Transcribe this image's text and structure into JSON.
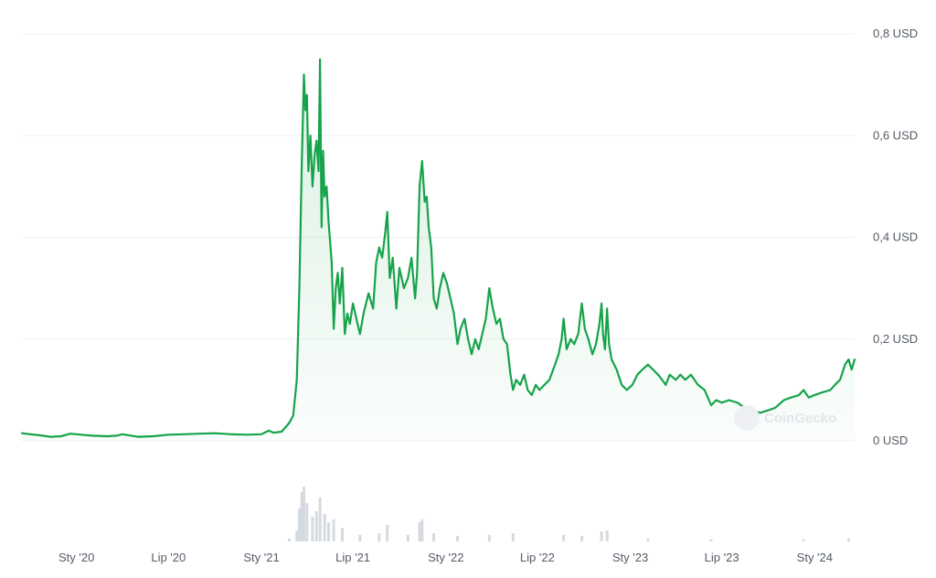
{
  "chart_data": {
    "type": "area",
    "title": "",
    "xlabel": "",
    "ylabel": "",
    "currency_unit": "USD",
    "ylim": [
      0,
      0.8
    ],
    "yticks": [
      {
        "value": 0,
        "label": "0 USD"
      },
      {
        "value": 0.2,
        "label": "0,2 USD"
      },
      {
        "value": 0.4,
        "label": "0,4 USD"
      },
      {
        "value": 0.6,
        "label": "0,6 USD"
      },
      {
        "value": 0.8,
        "label": "0,8 USD"
      }
    ],
    "xlim": [
      "2019-09-15",
      "2024-03-20"
    ],
    "xticks": [
      {
        "date": "2020-01-01",
        "label": "Sty '20"
      },
      {
        "date": "2020-07-01",
        "label": "Lip '20"
      },
      {
        "date": "2021-01-01",
        "label": "Sty '21"
      },
      {
        "date": "2021-07-01",
        "label": "Lip '21"
      },
      {
        "date": "2022-01-01",
        "label": "Sty '22"
      },
      {
        "date": "2022-07-01",
        "label": "Lip '22"
      },
      {
        "date": "2023-01-01",
        "label": "Sty '23"
      },
      {
        "date": "2023-07-01",
        "label": "Lip '23"
      },
      {
        "date": "2024-01-01",
        "label": "Sty '24"
      }
    ],
    "grid": true,
    "colors": {
      "line": "#16a34a",
      "fill": "#16a34a",
      "volume": "#d5dae1",
      "grid": "#eef0f3",
      "tick_text": "#545b66"
    },
    "watermark": "CoinGecko",
    "series": [
      {
        "name": "",
        "points": [
          [
            "2019-09-15",
            0.015
          ],
          [
            "2019-10-01",
            0.013
          ],
          [
            "2019-10-20",
            0.011
          ],
          [
            "2019-11-10",
            0.008
          ],
          [
            "2019-12-01",
            0.009
          ],
          [
            "2019-12-20",
            0.014
          ],
          [
            "2020-01-10",
            0.012
          ],
          [
            "2020-02-01",
            0.01
          ],
          [
            "2020-03-01",
            0.009
          ],
          [
            "2020-03-20",
            0.01
          ],
          [
            "2020-04-01",
            0.013
          ],
          [
            "2020-05-01",
            0.008
          ],
          [
            "2020-06-01",
            0.009
          ],
          [
            "2020-07-01",
            0.012
          ],
          [
            "2020-08-01",
            0.013
          ],
          [
            "2020-09-01",
            0.014
          ],
          [
            "2020-10-01",
            0.015
          ],
          [
            "2020-11-01",
            0.013
          ],
          [
            "2020-12-01",
            0.012
          ],
          [
            "2021-01-01",
            0.013
          ],
          [
            "2021-01-15",
            0.02
          ],
          [
            "2021-01-25",
            0.016
          ],
          [
            "2021-02-10",
            0.018
          ],
          [
            "2021-02-25",
            0.035
          ],
          [
            "2021-03-05",
            0.05
          ],
          [
            "2021-03-12",
            0.12
          ],
          [
            "2021-03-17",
            0.3
          ],
          [
            "2021-03-22",
            0.55
          ],
          [
            "2021-03-26",
            0.72
          ],
          [
            "2021-03-29",
            0.65
          ],
          [
            "2021-04-01",
            0.68
          ],
          [
            "2021-04-04",
            0.53
          ],
          [
            "2021-04-08",
            0.6
          ],
          [
            "2021-04-12",
            0.5
          ],
          [
            "2021-04-16",
            0.56
          ],
          [
            "2021-04-20",
            0.59
          ],
          [
            "2021-04-24",
            0.53
          ],
          [
            "2021-04-27",
            0.75
          ],
          [
            "2021-04-30",
            0.42
          ],
          [
            "2021-05-03",
            0.57
          ],
          [
            "2021-05-06",
            0.48
          ],
          [
            "2021-05-10",
            0.5
          ],
          [
            "2021-05-14",
            0.43
          ],
          [
            "2021-05-20",
            0.35
          ],
          [
            "2021-05-24",
            0.22
          ],
          [
            "2021-05-28",
            0.3
          ],
          [
            "2021-06-01",
            0.33
          ],
          [
            "2021-06-05",
            0.27
          ],
          [
            "2021-06-10",
            0.34
          ],
          [
            "2021-06-15",
            0.21
          ],
          [
            "2021-06-20",
            0.25
          ],
          [
            "2021-06-25",
            0.23
          ],
          [
            "2021-07-01",
            0.27
          ],
          [
            "2021-07-08",
            0.24
          ],
          [
            "2021-07-15",
            0.21
          ],
          [
            "2021-07-22",
            0.25
          ],
          [
            "2021-08-01",
            0.29
          ],
          [
            "2021-08-10",
            0.26
          ],
          [
            "2021-08-16",
            0.35
          ],
          [
            "2021-08-22",
            0.38
          ],
          [
            "2021-08-28",
            0.36
          ],
          [
            "2021-09-03",
            0.41
          ],
          [
            "2021-09-07",
            0.45
          ],
          [
            "2021-09-12",
            0.32
          ],
          [
            "2021-09-18",
            0.36
          ],
          [
            "2021-09-25",
            0.26
          ],
          [
            "2021-10-01",
            0.34
          ],
          [
            "2021-10-10",
            0.3
          ],
          [
            "2021-10-18",
            0.32
          ],
          [
            "2021-10-25",
            0.36
          ],
          [
            "2021-11-01",
            0.28
          ],
          [
            "2021-11-05",
            0.33
          ],
          [
            "2021-11-10",
            0.5
          ],
          [
            "2021-11-15",
            0.55
          ],
          [
            "2021-11-20",
            0.47
          ],
          [
            "2021-11-24",
            0.48
          ],
          [
            "2021-11-28",
            0.42
          ],
          [
            "2021-12-03",
            0.38
          ],
          [
            "2021-12-08",
            0.28
          ],
          [
            "2021-12-14",
            0.26
          ],
          [
            "2021-12-20",
            0.3
          ],
          [
            "2021-12-27",
            0.33
          ],
          [
            "2022-01-03",
            0.31
          ],
          [
            "2022-01-10",
            0.28
          ],
          [
            "2022-01-17",
            0.25
          ],
          [
            "2022-01-24",
            0.19
          ],
          [
            "2022-01-30",
            0.22
          ],
          [
            "2022-02-07",
            0.24
          ],
          [
            "2022-02-14",
            0.2
          ],
          [
            "2022-02-21",
            0.17
          ],
          [
            "2022-02-28",
            0.2
          ],
          [
            "2022-03-07",
            0.18
          ],
          [
            "2022-03-14",
            0.21
          ],
          [
            "2022-03-21",
            0.24
          ],
          [
            "2022-03-28",
            0.3
          ],
          [
            "2022-04-04",
            0.26
          ],
          [
            "2022-04-11",
            0.23
          ],
          [
            "2022-04-18",
            0.24
          ],
          [
            "2022-04-25",
            0.2
          ],
          [
            "2022-05-02",
            0.19
          ],
          [
            "2022-05-09",
            0.13
          ],
          [
            "2022-05-14",
            0.1
          ],
          [
            "2022-05-20",
            0.12
          ],
          [
            "2022-05-28",
            0.11
          ],
          [
            "2022-06-05",
            0.13
          ],
          [
            "2022-06-12",
            0.1
          ],
          [
            "2022-06-20",
            0.09
          ],
          [
            "2022-06-28",
            0.11
          ],
          [
            "2022-07-05",
            0.1
          ],
          [
            "2022-07-15",
            0.11
          ],
          [
            "2022-07-25",
            0.12
          ],
          [
            "2022-08-05",
            0.15
          ],
          [
            "2022-08-12",
            0.17
          ],
          [
            "2022-08-18",
            0.2
          ],
          [
            "2022-08-22",
            0.24
          ],
          [
            "2022-08-28",
            0.18
          ],
          [
            "2022-09-05",
            0.2
          ],
          [
            "2022-09-12",
            0.19
          ],
          [
            "2022-09-20",
            0.21
          ],
          [
            "2022-09-27",
            0.27
          ],
          [
            "2022-10-03",
            0.22
          ],
          [
            "2022-10-10",
            0.2
          ],
          [
            "2022-10-18",
            0.17
          ],
          [
            "2022-10-25",
            0.19
          ],
          [
            "2022-11-01",
            0.23
          ],
          [
            "2022-11-05",
            0.27
          ],
          [
            "2022-11-08",
            0.21
          ],
          [
            "2022-11-12",
            0.18
          ],
          [
            "2022-11-16",
            0.26
          ],
          [
            "2022-11-20",
            0.19
          ],
          [
            "2022-11-25",
            0.16
          ],
          [
            "2022-12-05",
            0.14
          ],
          [
            "2022-12-15",
            0.11
          ],
          [
            "2022-12-25",
            0.1
          ],
          [
            "2023-01-05",
            0.11
          ],
          [
            "2023-01-15",
            0.13
          ],
          [
            "2023-01-25",
            0.14
          ],
          [
            "2023-02-05",
            0.15
          ],
          [
            "2023-02-15",
            0.14
          ],
          [
            "2023-02-25",
            0.13
          ],
          [
            "2023-03-05",
            0.12
          ],
          [
            "2023-03-12",
            0.11
          ],
          [
            "2023-03-20",
            0.13
          ],
          [
            "2023-04-01",
            0.12
          ],
          [
            "2023-04-10",
            0.13
          ],
          [
            "2023-04-20",
            0.12
          ],
          [
            "2023-05-01",
            0.13
          ],
          [
            "2023-05-15",
            0.11
          ],
          [
            "2023-05-28",
            0.1
          ],
          [
            "2023-06-10",
            0.07
          ],
          [
            "2023-06-20",
            0.08
          ],
          [
            "2023-07-01",
            0.075
          ],
          [
            "2023-07-15",
            0.08
          ],
          [
            "2023-08-01",
            0.075
          ],
          [
            "2023-08-15",
            0.065
          ],
          [
            "2023-09-01",
            0.06
          ],
          [
            "2023-09-15",
            0.055
          ],
          [
            "2023-10-01",
            0.06
          ],
          [
            "2023-10-15",
            0.065
          ],
          [
            "2023-11-01",
            0.08
          ],
          [
            "2023-11-15",
            0.085
          ],
          [
            "2023-12-01",
            0.09
          ],
          [
            "2023-12-10",
            0.1
          ],
          [
            "2023-12-20",
            0.085
          ],
          [
            "2024-01-01",
            0.09
          ],
          [
            "2024-01-15",
            0.095
          ],
          [
            "2024-02-01",
            0.1
          ],
          [
            "2024-02-10",
            0.11
          ],
          [
            "2024-02-20",
            0.12
          ],
          [
            "2024-03-01",
            0.15
          ],
          [
            "2024-03-08",
            0.16
          ],
          [
            "2024-03-14",
            0.14
          ],
          [
            "2024-03-20",
            0.16
          ]
        ]
      }
    ],
    "volume": [
      [
        "2021-02-25",
        0.05
      ],
      [
        "2021-03-12",
        0.2
      ],
      [
        "2021-03-17",
        0.6
      ],
      [
        "2021-03-22",
        0.9
      ],
      [
        "2021-03-26",
        1.0
      ],
      [
        "2021-04-01",
        0.7
      ],
      [
        "2021-04-12",
        0.45
      ],
      [
        "2021-04-20",
        0.55
      ],
      [
        "2021-04-27",
        0.8
      ],
      [
        "2021-05-06",
        0.5
      ],
      [
        "2021-05-14",
        0.35
      ],
      [
        "2021-05-24",
        0.4
      ],
      [
        "2021-06-10",
        0.25
      ],
      [
        "2021-07-15",
        0.12
      ],
      [
        "2021-08-22",
        0.15
      ],
      [
        "2021-09-07",
        0.3
      ],
      [
        "2021-10-18",
        0.12
      ],
      [
        "2021-11-10",
        0.35
      ],
      [
        "2021-11-15",
        0.4
      ],
      [
        "2021-12-08",
        0.15
      ],
      [
        "2022-01-24",
        0.1
      ],
      [
        "2022-03-28",
        0.12
      ],
      [
        "2022-05-14",
        0.15
      ],
      [
        "2022-08-22",
        0.12
      ],
      [
        "2022-09-27",
        0.1
      ],
      [
        "2022-11-05",
        0.18
      ],
      [
        "2022-11-16",
        0.2
      ],
      [
        "2023-02-05",
        0.05
      ],
      [
        "2023-06-10",
        0.04
      ],
      [
        "2023-12-10",
        0.04
      ],
      [
        "2024-03-08",
        0.06
      ]
    ]
  }
}
